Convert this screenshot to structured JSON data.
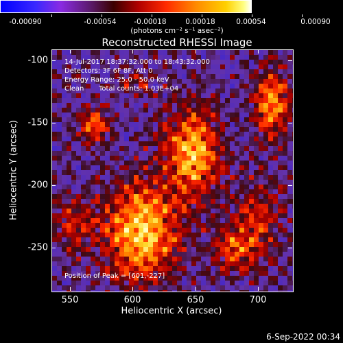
{
  "colorbar": {
    "tick_labels": [
      "-0.00090",
      "-0.00054",
      "-0.00018",
      "0.00018",
      "0.00054",
      "0.00090"
    ],
    "units": "(photons cm⁻² s⁻¹ asec⁻²)",
    "range": [
      -0.0009,
      0.0009
    ]
  },
  "title": "Reconstructed RHESSI Image",
  "info": {
    "time_range": "14-Jul-2017 18:37:32.000 to 18:43:32.000",
    "detectors": "Detectors: 3F 6F 8F, Att 0",
    "energy": "Energy Range: 25.0 - 50.0 keV",
    "algorithm": "Clean",
    "counts": "Total counts: 1.03E+04",
    "peak": "Position of Peak = [601,-227]"
  },
  "axes": {
    "x_title": "Heliocentric X (arcsec)",
    "y_title": "Heliocentric Y (arcsec)",
    "x_ticks": [
      "550",
      "600",
      "650",
      "700"
    ],
    "y_ticks": [
      "-100",
      "-150",
      "-200",
      "-250"
    ],
    "xlim": [
      535,
      727
    ],
    "ylim": [
      -287,
      -93
    ]
  },
  "footer": {
    "date": "6-Sep-2022 00:34"
  }
}
